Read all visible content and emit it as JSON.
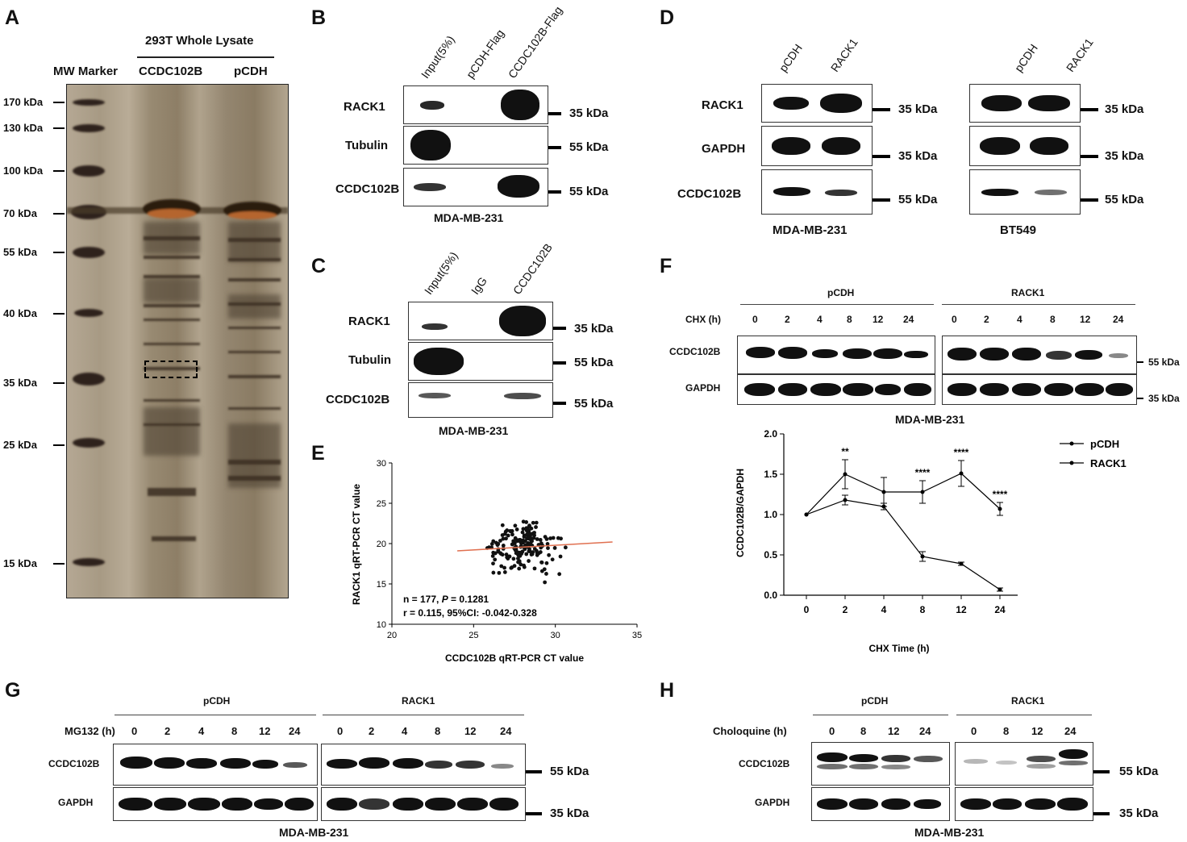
{
  "panels": {
    "A": "A",
    "B": "B",
    "C": "C",
    "D": "D",
    "E": "E",
    "F": "F",
    "G": "G",
    "H": "H"
  },
  "a": {
    "header": "293T Whole Lysate",
    "lanes": [
      "MW Marker",
      "CCDC102B",
      "pCDH"
    ],
    "markers": [
      "170 kDa",
      "130 kDa",
      "100 kDa",
      "70 kDa",
      "55 kDa",
      "40 kDa",
      "35 kDa",
      "25 kDa",
      "15 kDa"
    ]
  },
  "b": {
    "lanes": [
      "Input(5%)",
      "pCDH-Flag",
      "CCDC102B-Flag"
    ],
    "rows": [
      "RACK1",
      "Tubulin",
      "CCDC102B"
    ],
    "kda": [
      "35 kDa",
      "55 kDa",
      "55 kDa"
    ],
    "cell": "MDA-MB-231"
  },
  "c": {
    "lanes": [
      "Input(5%)",
      "IgG",
      "CCDC102B"
    ],
    "rows": [
      "RACK1",
      "Tubulin",
      "CCDC102B"
    ],
    "kda": [
      "35 kDa",
      "55 kDa",
      "55 kDa"
    ],
    "cell": "MDA-MB-231"
  },
  "d": {
    "lanes": [
      "pCDH",
      "RACK1"
    ],
    "rows": [
      "RACK1",
      "GAPDH",
      "CCDC102B"
    ],
    "kda": [
      "35 kDa",
      "35 kDa",
      "55 kDa"
    ],
    "cells": [
      "MDA-MB-231",
      "BT549"
    ]
  },
  "e": {
    "ann1": "n = 177, ",
    "ann_p": "P",
    "ann1b": " = 0.1281",
    "ann2": "r = 0.115, 95%CI: -0.042-0.328",
    "xlabel": "CCDC102B qRT-PCR CT value",
    "ylabel": "RACK1 qRT-PCR CT value"
  },
  "f": {
    "groups": [
      "pCDH",
      "RACK1"
    ],
    "time_label": "CHX (h)",
    "times": [
      "0",
      "2",
      "4",
      "8",
      "12",
      "24"
    ],
    "rows": [
      "CCDC102B",
      "GAPDH"
    ],
    "kda": [
      "55 kDa",
      "35 kDa"
    ],
    "cell": "MDA-MB-231"
  },
  "g": {
    "groups": [
      "pCDH",
      "RACK1"
    ],
    "time_label": "MG132 (h)",
    "times": [
      "0",
      "2",
      "4",
      "8",
      "12",
      "24"
    ],
    "rows": [
      "CCDC102B",
      "GAPDH"
    ],
    "kda": [
      "55 kDa",
      "35 kDa"
    ],
    "cell": "MDA-MB-231"
  },
  "h": {
    "groups": [
      "pCDH",
      "RACK1"
    ],
    "time_label": "Choloquine (h)",
    "times": [
      "0",
      "8",
      "12",
      "24"
    ],
    "rows": [
      "CCDC102B",
      "GAPDH"
    ],
    "kda": [
      "55 kDa",
      "35 kDa"
    ],
    "cell": "MDA-MB-231"
  },
  "chart_data": [
    {
      "type": "scatter",
      "panel": "E",
      "xlabel": "CCDC102B qRT-PCR CT value",
      "ylabel": "RACK1 qRT-PCR CT value",
      "xlim": [
        20,
        35
      ],
      "ylim": [
        10,
        30
      ],
      "xticks": [
        20,
        25,
        30,
        35
      ],
      "yticks": [
        10,
        15,
        20,
        25,
        30
      ],
      "fit_line": {
        "x": [
          24,
          33.5
        ],
        "y": [
          19.1,
          20.2
        ],
        "color": "#e07050"
      },
      "point_color": "#111111"
    },
    {
      "type": "line",
      "panel": "F",
      "xlabel": "CHX Time (h)",
      "ylabel": "CCDC102B/GAPDH",
      "categories": [
        "0",
        "2",
        "4",
        "8",
        "12",
        "24"
      ],
      "ylim": [
        0,
        2.0
      ],
      "yticks": [
        "0.0",
        "0.5",
        "1.0",
        "1.5",
        "2.0"
      ],
      "legend_position": "top-right",
      "series": [
        {
          "name": "pCDH",
          "values": [
            1.0,
            1.5,
            1.28,
            1.28,
            1.51,
            1.07
          ],
          "errors": [
            0,
            0.18,
            0.18,
            0.14,
            0.16,
            0.08
          ]
        },
        {
          "name": "RACK1",
          "values": [
            1.0,
            1.18,
            1.1,
            0.48,
            0.39,
            0.07
          ],
          "errors": [
            0,
            0.06,
            0.04,
            0.06,
            0.02,
            0.02
          ]
        }
      ],
      "significance": [
        "",
        "**",
        "",
        "****",
        "****",
        "****"
      ]
    }
  ]
}
